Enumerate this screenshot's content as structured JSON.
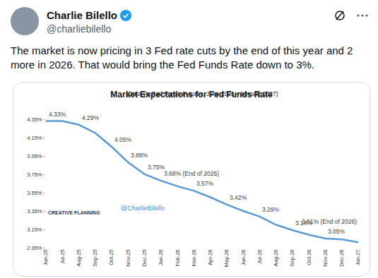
{
  "header": {
    "name": "Charlie Bilello",
    "handle": "@charliebilello",
    "text": "The market is now pricing in 3 Fed rate cuts by the end of this year and 2 more in 2026. That would bring the Fed Funds Rate down to 3%."
  },
  "chart_data": {
    "type": "line",
    "title": "Market Expectations for Fed Funds Rate",
    "subtitle": "(Data via Fed Funds Futures, June 2025 - January 2027)",
    "categories": [
      "Jun-25",
      "Jul-25",
      "Aug-25",
      "Sep-25",
      "Oct-25",
      "Nov-25",
      "Dec-25",
      "Jan-26",
      "Feb-26",
      "Mar-26",
      "Apr-26",
      "May-26",
      "Jun-26",
      "Jul-26",
      "Aug-26",
      "Sep-26",
      "Oct-26",
      "Nov-26",
      "Dec-26",
      "Jan-27"
    ],
    "values": [
      4.33,
      4.33,
      4.29,
      4.2,
      4.05,
      3.88,
      3.75,
      3.68,
      3.62,
      3.57,
      3.5,
      3.42,
      3.35,
      3.29,
      3.2,
      3.14,
      3.09,
      3.05,
      3.04,
      3.01
    ],
    "value_labels": [
      "4.33%",
      null,
      "4.29%",
      null,
      "4.05%",
      "3.88%",
      "3.75%",
      "3.68% (End of 2025)",
      null,
      "3.57%",
      null,
      "3.42%",
      null,
      "3.29%",
      null,
      "3.14%",
      null,
      "3.05%",
      null,
      "3.01% (End of 2026)"
    ],
    "data_labels": true,
    "color": "#5b9bd5",
    "ylim": [
      2.95,
      4.35
    ],
    "yticks": [
      {
        "value": 2.95,
        "label": "2.95%"
      },
      {
        "value": 3.15,
        "label": "3.15%"
      },
      {
        "value": 3.35,
        "label": "3.35%"
      },
      {
        "value": 3.55,
        "label": "3.55%"
      },
      {
        "value": 3.75,
        "label": "3.75%"
      },
      {
        "value": 3.95,
        "label": "3.95%"
      },
      {
        "value": 4.15,
        "label": "4.15%"
      },
      {
        "value": 4.35,
        "label": "4.35%"
      }
    ],
    "grid": false,
    "annotations": [
      "CREATIVE PLANNING",
      "@CharlieBilello"
    ]
  }
}
